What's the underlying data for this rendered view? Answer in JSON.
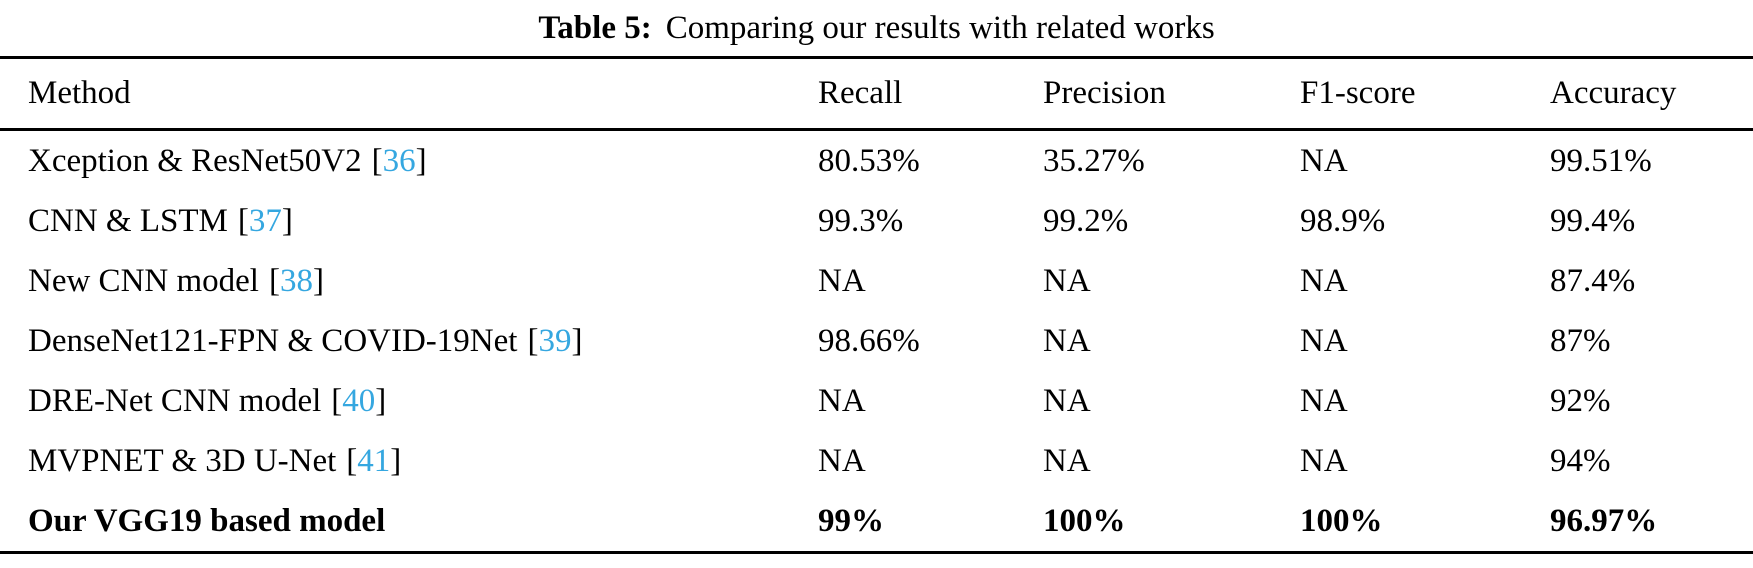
{
  "caption": {
    "label": "Table 5:",
    "text": "Comparing our results with related works"
  },
  "colors": {
    "citation_link": "#35a7e0",
    "rule": "#000000",
    "text": "#000000",
    "background": "#ffffff"
  },
  "punctuation": {
    "bracket_open": "[",
    "bracket_close": "]"
  },
  "table": {
    "columns": [
      "Method",
      "Recall",
      "Precision",
      "F1-score",
      "Accuracy"
    ],
    "rows": [
      {
        "method": "Xception & ResNet50V2",
        "citation": "36",
        "recall": "80.53%",
        "precision": "35.27%",
        "f1": "NA",
        "accuracy": "99.51%",
        "bold": false
      },
      {
        "method": "CNN & LSTM",
        "citation": "37",
        "recall": "99.3%",
        "precision": "99.2%",
        "f1": "98.9%",
        "accuracy": "99.4%",
        "bold": false
      },
      {
        "method": "New CNN model",
        "citation": "38",
        "recall": "NA",
        "precision": "NA",
        "f1": "NA",
        "accuracy": "87.4%",
        "bold": false
      },
      {
        "method": "DenseNet121-FPN & COVID-19Net",
        "citation": "39",
        "recall": "98.66%",
        "precision": "NA",
        "f1": "NA",
        "accuracy": "87%",
        "bold": false
      },
      {
        "method": "DRE-Net CNN model",
        "citation": "40",
        "recall": "NA",
        "precision": "NA",
        "f1": "NA",
        "accuracy": "92%",
        "bold": false
      },
      {
        "method": "MVPNET & 3D U-Net",
        "citation": "41",
        "recall": "NA",
        "precision": "NA",
        "f1": "NA",
        "accuracy": "94%",
        "bold": false
      },
      {
        "method": "Our VGG19 based model",
        "citation": null,
        "recall": "99%",
        "precision": "100%",
        "f1": "100%",
        "accuracy": "96.97%",
        "bold": true
      }
    ]
  }
}
